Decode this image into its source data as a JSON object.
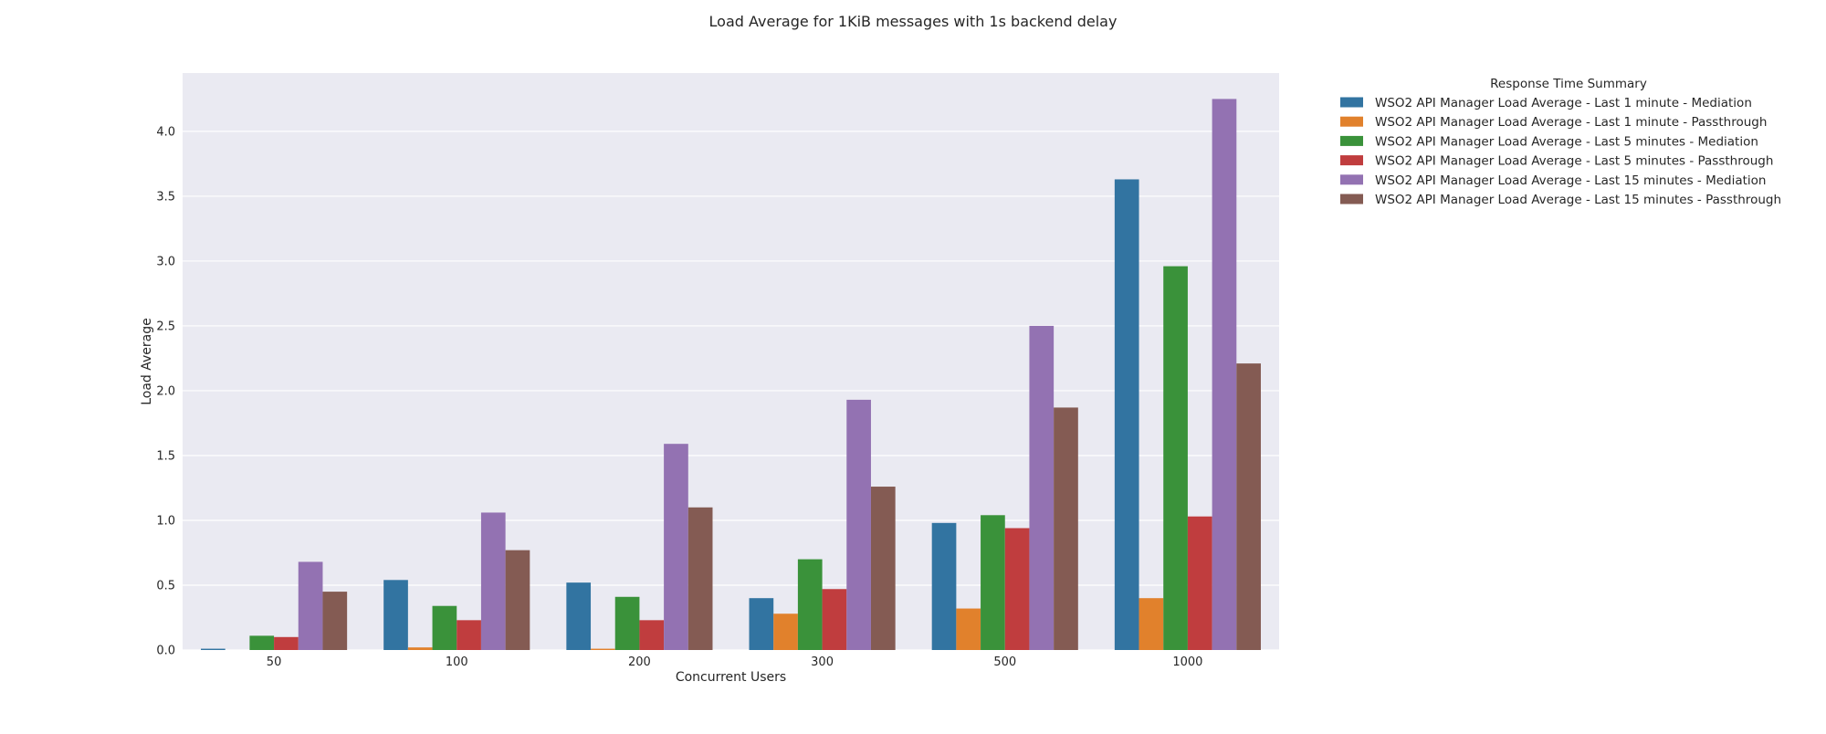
{
  "chart_data": {
    "type": "bar",
    "title": "Load Average for 1KiB messages with 1s backend delay",
    "xlabel": "Concurrent Users",
    "ylabel": "Load Average",
    "ylim": [
      0,
      4.45
    ],
    "yticks": [
      0.0,
      0.5,
      1.0,
      1.5,
      2.0,
      2.5,
      3.0,
      3.5,
      4.0
    ],
    "ytick_labels": [
      "0.0",
      "0.5",
      "1.0",
      "1.5",
      "2.0",
      "2.5",
      "3.0",
      "3.5",
      "4.0"
    ],
    "categories": [
      "50",
      "100",
      "200",
      "300",
      "500",
      "1000"
    ],
    "grid": true,
    "background": "#eaeaf2",
    "legend": {
      "title": "Response Time Summary",
      "placement": "outside-right"
    },
    "series": [
      {
        "name": "WSO2 API Manager Load Average - Last 1 minute - Mediation",
        "color": "#3274a1",
        "values": [
          0.01,
          0.54,
          0.52,
          0.4,
          0.98,
          3.63
        ]
      },
      {
        "name": "WSO2 API Manager Load Average - Last 1 minute - Passthrough",
        "color": "#e1812c",
        "values": [
          0.0,
          0.02,
          0.01,
          0.28,
          0.32,
          0.4
        ]
      },
      {
        "name": "WSO2 API Manager Load Average - Last 5 minutes - Mediation",
        "color": "#3a923a",
        "values": [
          0.11,
          0.34,
          0.41,
          0.7,
          1.04,
          2.96
        ]
      },
      {
        "name": "WSO2 API Manager Load Average - Last 5 minutes - Passthrough",
        "color": "#c03d3e",
        "values": [
          0.1,
          0.23,
          0.23,
          0.47,
          0.94,
          1.03
        ]
      },
      {
        "name": "WSO2 API Manager Load Average - Last 15 minutes - Mediation",
        "color": "#9372b2",
        "values": [
          0.68,
          1.06,
          1.59,
          1.93,
          2.5,
          4.25
        ]
      },
      {
        "name": "WSO2 API Manager Load Average - Last 15 minutes - Passthrough",
        "color": "#845b53",
        "values": [
          0.45,
          0.77,
          1.1,
          1.26,
          1.87,
          2.21
        ]
      }
    ]
  }
}
